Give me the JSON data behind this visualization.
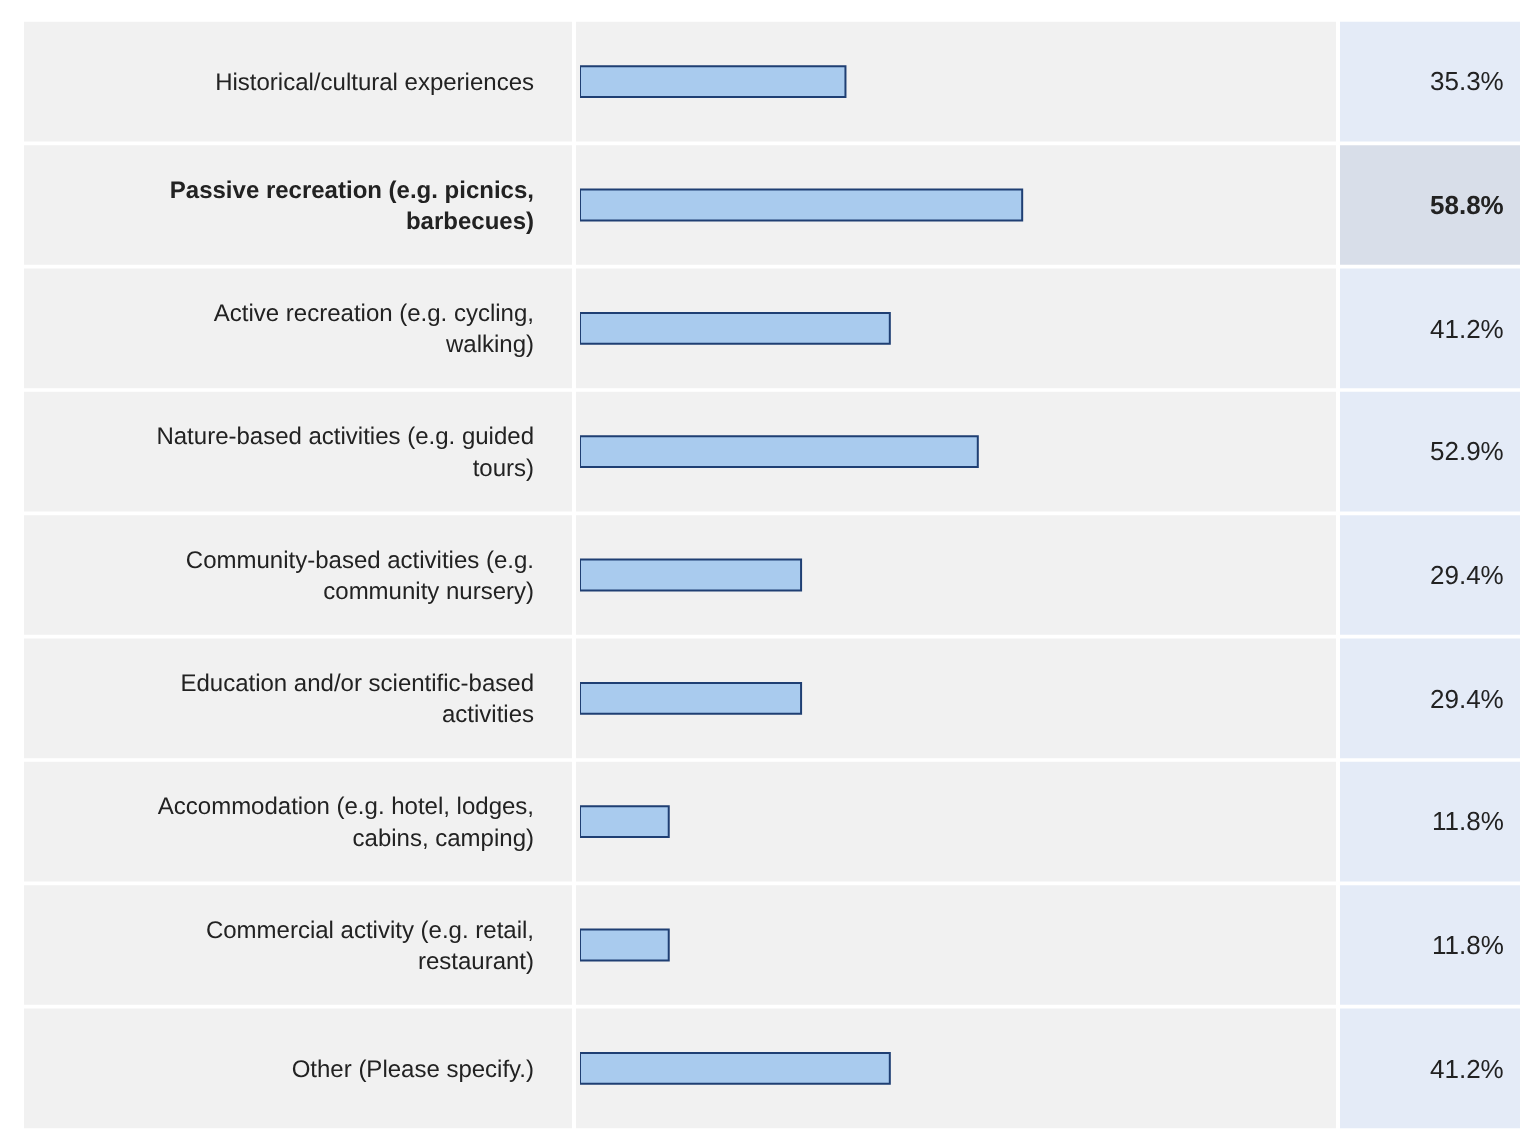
{
  "chart_data": {
    "type": "bar",
    "orientation": "horizontal",
    "categories": [
      "Historical/cultural experiences",
      "Passive recreation (e.g. picnics, barbecues)",
      "Active recreation (e.g. cycling, walking)",
      "Nature-based activities (e.g. guided tours)",
      "Community-based activities (e.g. community nursery)",
      "Education and/or scientific-based activities",
      "Accommodation (e.g. hotel, lodges, cabins, camping)",
      "Commercial activity (e.g. retail, restaurant)",
      "Other (Please specify.)"
    ],
    "values": [
      35.3,
      58.8,
      41.2,
      52.9,
      29.4,
      29.4,
      11.8,
      11.8,
      41.2
    ],
    "value_labels": [
      "35.3%",
      "58.8%",
      "41.2%",
      "52.9%",
      "29.4%",
      "29.4%",
      "11.8%",
      "11.8%",
      "41.2%"
    ],
    "color": "#a9cbee",
    "xlim": [
      0,
      100
    ],
    "tick_labels": "y",
    "grid": false,
    "legend": false
  }
}
